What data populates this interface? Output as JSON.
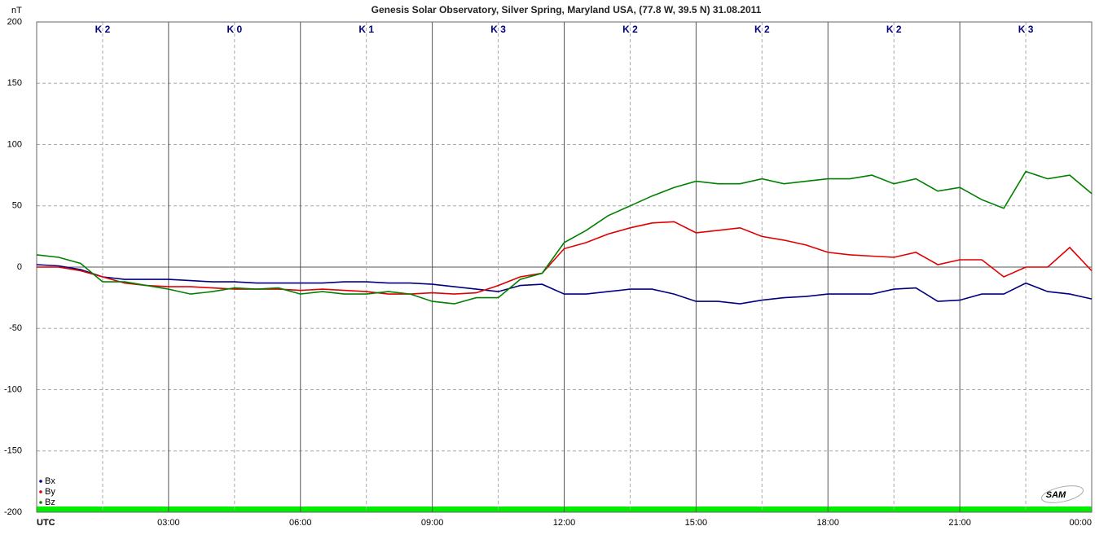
{
  "chart_data": {
    "type": "line",
    "title": "Genesis Solar Observatory, Silver Spring, Maryland USA, (77.8 W, 39.5 N)  31.08.2011",
    "y_label": "nT",
    "logo": "SAM",
    "x": [
      0,
      0.5,
      1,
      1.5,
      2,
      2.5,
      3,
      3.5,
      4,
      4.5,
      5,
      5.5,
      6,
      6.5,
      7,
      7.5,
      8,
      8.5,
      9,
      9.5,
      10,
      10.5,
      11,
      11.5,
      12,
      12.5,
      13,
      13.5,
      14,
      14.5,
      15,
      15.5,
      16,
      16.5,
      17,
      17.5,
      18,
      18.5,
      19,
      19.5,
      20,
      20.5,
      21,
      21.5,
      22,
      22.5,
      23,
      23.5,
      24
    ],
    "xlim": [
      0,
      24
    ],
    "xticks": [
      {
        "value": 0,
        "label": "UTC"
      },
      {
        "value": 3,
        "label": "03:00"
      },
      {
        "value": 6,
        "label": "06:00"
      },
      {
        "value": 9,
        "label": "09:00"
      },
      {
        "value": 12,
        "label": "12:00"
      },
      {
        "value": 15,
        "label": "15:00"
      },
      {
        "value": 18,
        "label": "18:00"
      },
      {
        "value": 21,
        "label": "21:00"
      },
      {
        "value": 24,
        "label": "00:00"
      }
    ],
    "ylim": [
      -200,
      200
    ],
    "yticks": [
      200,
      150,
      100,
      50,
      0,
      -50,
      -100,
      -150,
      -200
    ],
    "k_indices": [
      "K 2",
      "K 0",
      "K 1",
      "K 3",
      "K 2",
      "K 2",
      "K 2",
      "K 3"
    ],
    "grid": true,
    "legend": "lower left",
    "series": [
      {
        "name": "Bx",
        "color": "#000080",
        "values": [
          2,
          1,
          -2,
          -8,
          -10,
          -10,
          -10,
          -11,
          -12,
          -12,
          -13,
          -13,
          -13,
          -13,
          -12,
          -12,
          -13,
          -13,
          -14,
          -16,
          -18,
          -20,
          -15,
          -14,
          -22,
          -22,
          -20,
          -18,
          -18,
          -22,
          -28,
          -28,
          -30,
          -27,
          -25,
          -24,
          -22,
          -22,
          -22,
          -18,
          -17,
          -28,
          -27,
          -22,
          -22,
          -13,
          -20,
          -22,
          -26
        ]
      },
      {
        "name": "By",
        "color": "#e00000",
        "values": [
          0,
          0,
          -3,
          -8,
          -13,
          -15,
          -16,
          -16,
          -17,
          -18,
          -18,
          -18,
          -19,
          -18,
          -19,
          -20,
          -22,
          -22,
          -21,
          -22,
          -21,
          -15,
          -8,
          -5,
          15,
          20,
          27,
          32,
          36,
          37,
          28,
          30,
          32,
          25,
          22,
          18,
          12,
          10,
          9,
          8,
          12,
          2,
          6,
          6,
          -8,
          0,
          0,
          16,
          -3
        ]
      },
      {
        "name": "Bz",
        "color": "#008000",
        "values": [
          10,
          8,
          3,
          -12,
          -12,
          -15,
          -18,
          -22,
          -20,
          -17,
          -18,
          -17,
          -22,
          -20,
          -22,
          -22,
          -20,
          -22,
          -28,
          -30,
          -25,
          -25,
          -10,
          -5,
          20,
          30,
          42,
          50,
          58,
          65,
          70,
          68,
          68,
          72,
          68,
          70,
          72,
          72,
          75,
          68,
          72,
          62,
          65,
          55,
          48,
          78,
          72,
          75,
          60
        ]
      }
    ]
  }
}
